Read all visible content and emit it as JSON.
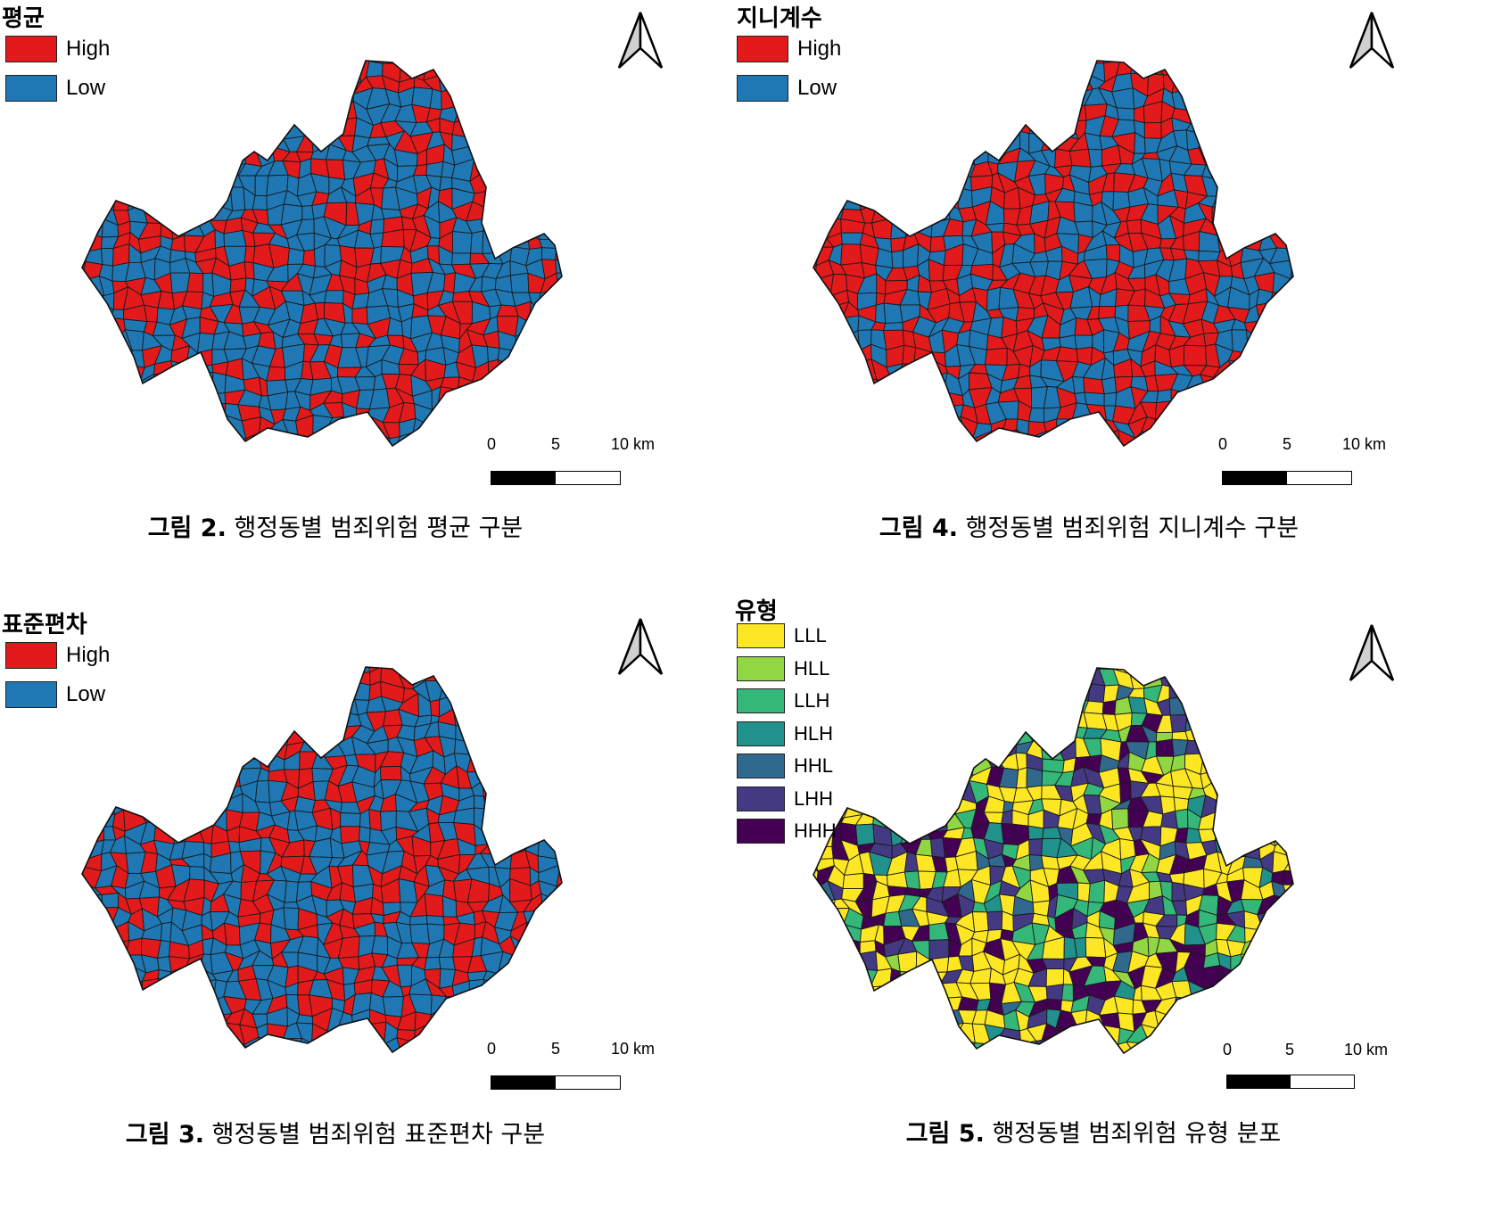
{
  "panels": [
    {
      "legend": {
        "title": "평균",
        "items": [
          {
            "label": "High",
            "color": "#e31a1c"
          },
          {
            "label": "Low",
            "color": "#1f78b4"
          }
        ]
      },
      "caption": {
        "fig": "그림 2.",
        "text": "행정동별  범죄위험  평균  구분"
      },
      "scale": {
        "t0": "0",
        "t1": "5",
        "t2": "10 km"
      },
      "map_colors": [
        "#e31a1c",
        "#1f78b4"
      ],
      "high_share": 0.42
    },
    {
      "legend": {
        "title": "지니계수",
        "items": [
          {
            "label": "High",
            "color": "#e31a1c"
          },
          {
            "label": "Low",
            "color": "#1f78b4"
          }
        ]
      },
      "caption": {
        "fig": "그림 4.",
        "text": "행정동별  범죄위험  지니계수  구분"
      },
      "scale": {
        "t0": "0",
        "t1": "5",
        "t2": "10 km"
      },
      "map_colors": [
        "#e31a1c",
        "#1f78b4"
      ],
      "high_share": 0.55
    },
    {
      "legend": {
        "title": "표준편차",
        "items": [
          {
            "label": "High",
            "color": "#e31a1c"
          },
          {
            "label": "Low",
            "color": "#1f78b4"
          }
        ]
      },
      "caption": {
        "fig": "그림 3.",
        "text": "행정동별  범죄위험  표준편차  구분"
      },
      "scale": {
        "t0": "0",
        "t1": "5",
        "t2": "10 km"
      },
      "map_colors": [
        "#e31a1c",
        "#1f78b4"
      ],
      "high_share": 0.45
    },
    {
      "legend": {
        "title": "유형",
        "items": [
          {
            "label": "LLL",
            "color": "#fde725"
          },
          {
            "label": "HLL",
            "color": "#90d743"
          },
          {
            "label": "LLH",
            "color": "#35b779"
          },
          {
            "label": "HLH",
            "color": "#21918c"
          },
          {
            "label": "HHL",
            "color": "#31688e"
          },
          {
            "label": "LHH",
            "color": "#443983"
          },
          {
            "label": "HHH",
            "color": "#440154"
          }
        ]
      },
      "caption": {
        "fig": "그림 5.",
        "text": "행정동별  범죄위험  유형  분포"
      },
      "scale": {
        "t0": "0",
        "t1": "5",
        "t2": "10 km"
      },
      "map_colors": [
        "#fde725",
        "#90d743",
        "#35b779",
        "#21918c",
        "#31688e",
        "#443983",
        "#440154"
      ],
      "high_share": 0.0
    }
  ]
}
